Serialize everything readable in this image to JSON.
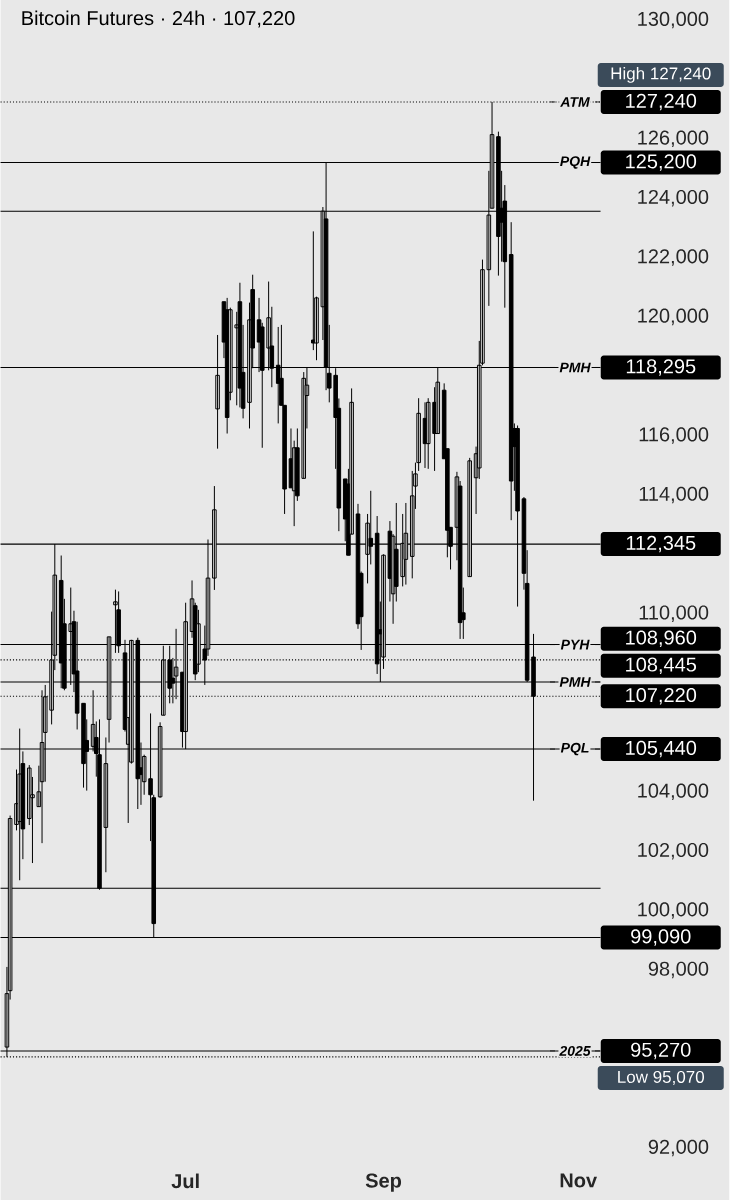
{
  "chart_data": {
    "type": "candlestick",
    "title": "Bitcoin Futures · 24h · 107,220",
    "color": "#000000",
    "x": [
      "2025-05-06",
      "2025-05-07",
      "2025-05-09",
      "2025-05-10",
      "2025-05-11",
      "2025-05-13",
      "2025-05-14",
      "2025-05-16",
      "2025-05-17",
      "2025-05-18",
      "2025-05-20",
      "2025-05-21",
      "2025-05-23",
      "2025-05-24",
      "2025-05-26",
      "2025-05-27",
      "2025-05-28",
      "2025-05-30",
      "2025-05-31",
      "2025-06-02",
      "2025-06-03",
      "2025-06-04",
      "2025-06-06",
      "2025-06-07",
      "2025-06-09",
      "2025-06-10",
      "2025-06-12",
      "2025-06-13",
      "2025-06-14",
      "2025-06-16",
      "2025-06-17",
      "2025-06-18",
      "2025-06-20",
      "2025-06-21",
      "2025-06-23",
      "2025-06-24",
      "2025-06-26",
      "2025-06-27",
      "2025-06-28",
      "2025-06-30",
      "2025-07-01",
      "2025-07-03",
      "2025-07-04",
      "2025-07-05",
      "2025-07-07",
      "2025-07-08",
      "2025-07-10",
      "2025-07-11",
      "2025-07-13",
      "2025-07-14",
      "2025-07-15",
      "2025-07-17",
      "2025-07-18",
      "2025-07-19",
      "2025-07-21",
      "2025-07-22",
      "2025-07-24",
      "2025-07-25",
      "2025-07-27",
      "2025-07-28",
      "2025-07-30",
      "2025-07-31",
      "2025-08-01",
      "2025-08-03",
      "2025-08-04",
      "2025-08-05",
      "2025-08-07",
      "2025-08-08",
      "2025-08-10",
      "2025-08-11",
      "2025-08-13",
      "2025-08-14",
      "2025-08-15",
      "2025-08-17",
      "2025-08-18",
      "2025-08-20",
      "2025-08-21",
      "2025-08-22",
      "2025-08-24",
      "2025-08-25",
      "2025-08-27",
      "2025-08-28",
      "2025-08-30",
      "2025-08-31",
      "2025-09-01",
      "2025-09-03",
      "2025-09-04",
      "2025-09-05",
      "2025-09-07",
      "2025-09-08",
      "2025-09-10",
      "2025-09-11",
      "2025-09-12",
      "2025-09-14",
      "2025-09-15",
      "2025-09-17",
      "2025-09-18",
      "2025-09-20",
      "2025-09-21",
      "2025-09-22",
      "2025-09-24",
      "2025-09-25",
      "2025-09-26",
      "2025-09-28",
      "2025-09-30",
      "2025-10-01",
      "2025-10-02",
      "2025-10-04",
      "2025-10-05",
      "2025-10-07",
      "2025-10-08",
      "2025-10-09",
      "2025-10-11",
      "2025-10-12",
      "2025-10-13",
      "2025-10-15",
      "2025-10-16",
      "2025-10-18"
    ],
    "ohlc": [
      [
        95400,
        98100,
        95070,
        97200
      ],
      [
        97300,
        103200,
        97000,
        103100
      ],
      [
        102900,
        104750,
        102700,
        103600
      ],
      [
        103000,
        106130,
        101020,
        104600
      ],
      [
        104950,
        105360,
        101730,
        102750
      ],
      [
        103100,
        104900,
        102880,
        104800
      ],
      [
        103800,
        104500,
        101600,
        103900
      ],
      [
        103500,
        104880,
        103500,
        104000
      ],
      [
        104340,
        107420,
        102270,
        105660
      ],
      [
        106000,
        107600,
        104340,
        107200
      ],
      [
        106750,
        110070,
        106270,
        108440
      ],
      [
        108600,
        112345,
        108100,
        111300
      ],
      [
        111120,
        111960,
        107490,
        108340
      ],
      [
        109660,
        110500,
        107420,
        107490
      ],
      [
        109400,
        110880,
        107600,
        109660
      ],
      [
        109730,
        110100,
        107360,
        107970
      ],
      [
        108070,
        109730,
        106100,
        106650
      ],
      [
        106980,
        106980,
        104140,
        104950
      ],
      [
        105730,
        106440,
        104040,
        105360
      ],
      [
        105530,
        107420,
        105360,
        106270
      ],
      [
        105830,
        106370,
        104510,
        105290
      ],
      [
        105250,
        106440,
        100700,
        100750
      ],
      [
        102800,
        105830,
        101290,
        104950
      ],
      [
        106440,
        109220,
        105660,
        109220
      ],
      [
        110300,
        110810,
        108680,
        110400
      ],
      [
        110130,
        110750,
        108680,
        108920
      ],
      [
        108680,
        109120,
        106030,
        106100
      ],
      [
        105600,
        106510,
        102950,
        106500
      ],
      [
        105000,
        109120,
        104950,
        109100
      ],
      [
        109100,
        109190,
        103420,
        104440
      ],
      [
        104810,
        105660,
        103560,
        104580
      ],
      [
        104340,
        105250,
        103900,
        105190
      ],
      [
        104440,
        106640,
        102340,
        103900
      ],
      [
        103800,
        103900,
        99090,
        99560
      ],
      [
        103830,
        106340,
        103800,
        106200
      ],
      [
        106580,
        108920,
        106580,
        108440
      ],
      [
        108440,
        108920,
        106980,
        107490
      ],
      [
        107830,
        108510,
        106980,
        107660
      ],
      [
        107900,
        109490,
        107120,
        108200
      ],
      [
        108030,
        108030,
        105490,
        106030
      ],
      [
        106030,
        110370,
        105440,
        109730
      ],
      [
        109400,
        111120,
        109190,
        110500
      ],
      [
        110270,
        110370,
        107760,
        107970
      ],
      [
        108300,
        110130,
        108030,
        109660
      ],
      [
        108810,
        109600,
        107600,
        108440
      ],
      [
        108810,
        112500,
        108580,
        111200
      ],
      [
        111200,
        114300,
        110800,
        113500
      ],
      [
        116900,
        119390,
        115560,
        118030
      ],
      [
        120510,
        120510,
        118610,
        119150
      ],
      [
        120240,
        120640,
        116070,
        116610
      ],
      [
        117460,
        120310,
        117190,
        120240
      ],
      [
        119630,
        120170,
        117020,
        119730
      ],
      [
        120510,
        121150,
        116950,
        117600
      ],
      [
        118130,
        119730,
        116580,
        116920
      ],
      [
        117120,
        120480,
        116240,
        119900
      ],
      [
        120920,
        121420,
        118270,
        118950
      ],
      [
        119900,
        120640,
        118140,
        119150
      ],
      [
        119660,
        119800,
        115590,
        118200
      ],
      [
        118950,
        121190,
        118200,
        119970
      ],
      [
        119020,
        120340,
        117630,
        118270
      ],
      [
        118370,
        119660,
        116410,
        117760
      ],
      [
        117930,
        119730,
        117020,
        117020
      ],
      [
        117020,
        117020,
        113360,
        114200
      ],
      [
        115220,
        116240,
        114240,
        114240
      ],
      [
        114140,
        115830,
        112950,
        115590
      ],
      [
        115590,
        116240,
        113800,
        113970
      ],
      [
        114560,
        118140,
        114560,
        117930
      ],
      [
        117350,
        118310,
        116240,
        117700
      ],
      [
        119220,
        122880,
        118880,
        119120
      ],
      [
        119120,
        120680,
        118540,
        120640
      ],
      [
        120340,
        123700,
        119220,
        123560
      ],
      [
        123300,
        125200,
        117530,
        118310
      ],
      [
        118100,
        119730,
        117120,
        117600
      ],
      [
        118030,
        118270,
        114880,
        116610
      ],
      [
        116920,
        117250,
        112780,
        113560
      ],
      [
        114540,
        114540,
        112440,
        113190
      ],
      [
        114370,
        114880,
        111970,
        111970
      ],
      [
        112680,
        117590,
        112680,
        117120
      ],
      [
        113360,
        113700,
        109490,
        109660
      ],
      [
        111360,
        111420,
        108780,
        109900
      ],
      [
        112000,
        113360,
        111020,
        113050
      ],
      [
        112540,
        114140,
        111660,
        112270
      ],
      [
        112710,
        113290,
        107970,
        108310
      ],
      [
        109460,
        110410,
        107700,
        109320
      ],
      [
        108540,
        112000,
        108140,
        111970
      ],
      [
        112780,
        113120,
        110410,
        111190
      ],
      [
        110670,
        112680,
        109660,
        112610
      ],
      [
        112170,
        113730,
        110410,
        110920
      ],
      [
        111250,
        113360,
        110920,
        112370
      ],
      [
        111830,
        113730,
        110980,
        112710
      ],
      [
        111930,
        114810,
        111190,
        113970
      ],
      [
        114300,
        115090,
        113530,
        114710
      ],
      [
        115090,
        117260,
        114810,
        116750
      ],
      [
        116580,
        117120,
        114910,
        115730
      ],
      [
        115730,
        117260,
        114880,
        117120
      ],
      [
        117120,
        117630,
        114810,
        116070
      ],
      [
        116070,
        118295,
        116070,
        117800
      ],
      [
        117530,
        117760,
        115220,
        115220
      ],
      [
        115560,
        115560,
        111900,
        112810
      ],
      [
        112910,
        112910,
        111490,
        112270
      ],
      [
        112910,
        114780,
        111800,
        114610
      ],
      [
        114300,
        114470,
        109150,
        109700
      ],
      [
        110030,
        110880,
        109150,
        109800
      ],
      [
        111250,
        115250,
        111250,
        115150
      ],
      [
        114580,
        115630,
        113360,
        115390
      ],
      [
        114910,
        119190,
        114540,
        118370
      ],
      [
        118440,
        121930,
        118370,
        121590
      ],
      [
        121590,
        124920,
        120370,
        123430
      ],
      [
        123660,
        127240,
        123660,
        126140
      ],
      [
        126070,
        126240,
        121390,
        122710
      ],
      [
        123660,
        124920,
        121860,
        123190
      ],
      [
        123900,
        124440,
        120310,
        121860
      ],
      [
        122100,
        123190,
        113150,
        114470
      ],
      [
        116240,
        116410,
        114140,
        115630
      ],
      [
        116240,
        116340,
        110240,
        113460
      ],
      [
        113870,
        113930,
        110810,
        111360
      ],
      [
        111020,
        112140,
        107700,
        107760
      ],
      [
        108540,
        109320,
        103700,
        107220
      ]
    ],
    "xlim": [
      "2025-05-04",
      "2025-11-08"
    ],
    "xticks": [
      {
        "value": "2025-07-01",
        "label": "Jul"
      },
      {
        "value": "2025-09-01",
        "label": "Sep"
      },
      {
        "value": "2025-11-01",
        "label": "Nov"
      }
    ],
    "ylim": [
      92000,
      130000
    ],
    "yticks": [
      {
        "value": 92000,
        "label": "92,000"
      },
      {
        "value": 98000,
        "label": "98,000"
      },
      {
        "value": 100000,
        "label": "100,000"
      },
      {
        "value": 102000,
        "label": "102,000"
      },
      {
        "value": 104000,
        "label": "104,000"
      },
      {
        "value": 110000,
        "label": "110,000"
      },
      {
        "value": 114000,
        "label": "114,000"
      },
      {
        "value": 116000,
        "label": "116,000"
      },
      {
        "value": 120000,
        "label": "120,000"
      },
      {
        "value": 122000,
        "label": "122,000"
      },
      {
        "value": 124000,
        "label": "124,000"
      },
      {
        "value": 126000,
        "label": "126,000"
      },
      {
        "value": 130000,
        "label": "130,000"
      }
    ],
    "ref_lines": [
      {
        "axis": "y",
        "value": 127240,
        "label": "127,240",
        "line_style": "dotted"
      },
      {
        "axis": "y",
        "value": 125200,
        "label": "125,200",
        "line_style": "solid"
      },
      {
        "axis": "y",
        "value": 123560,
        "line_style": "solid"
      },
      {
        "axis": "y",
        "value": 118295,
        "label": "118,295",
        "line_style": "solid"
      },
      {
        "axis": "y",
        "value": 112345,
        "label": "112,345",
        "line_style": "solid"
      },
      {
        "axis": "y",
        "value": 108960,
        "label": "108,960",
        "line_style": "solid"
      },
      {
        "axis": "y",
        "value": 108445,
        "label": "108,445",
        "line_style": "dotted"
      },
      {
        "axis": "y",
        "value": 107700,
        "line_style": "solid"
      },
      {
        "axis": "y",
        "value": 107220,
        "label": "107,220",
        "line_style": "dotted"
      },
      {
        "axis": "y",
        "value": 105440,
        "label": "105,440",
        "line_style": "solid"
      },
      {
        "axis": "y",
        "value": 100750,
        "line_style": "solid"
      },
      {
        "axis": "y",
        "value": 99090,
        "label": "99,090",
        "line_style": "solid"
      },
      {
        "axis": "y",
        "value": 95270,
        "label": "95,270",
        "line_style": "solid"
      },
      {
        "axis": "y",
        "value": 95070,
        "line_style": "dotted"
      }
    ],
    "annotations": [
      "High 127,240",
      {
        "text": "ATM",
        "x": "2025-10-31",
        "y": 127240
      },
      {
        "text": "PQH",
        "x": "2025-10-31",
        "y": 125200
      },
      {
        "text": "PMH",
        "x": "2025-10-31",
        "y": 118295
      },
      {
        "text": "PYH",
        "x": "2025-10-31",
        "y": 108960
      },
      {
        "text": "PMH",
        "x": "2025-10-31",
        "y": 107700
      },
      {
        "text": "PQL",
        "x": "2025-10-31",
        "y": 105440
      },
      {
        "text": "2025",
        "x": "2025-10-31",
        "y": 95270
      },
      "Low 95,070"
    ]
  }
}
